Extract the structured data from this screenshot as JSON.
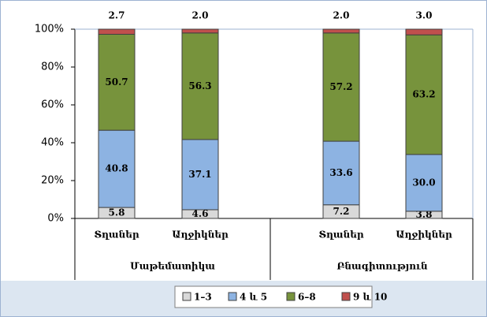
{
  "chart_data": {
    "type": "stacked_bar_percent",
    "categories": [
      "Տղաներ",
      "Աղջիկներ",
      "Տղաներ",
      "Աղջիկներ"
    ],
    "category_groups": [
      "Մաթեմատիկա",
      "Բնագիտություն"
    ],
    "series": [
      {
        "name": "1–3",
        "color": "#d9d9d9",
        "values": [
          5.8,
          4.6,
          7.2,
          3.8
        ],
        "value_labels": [
          "5.8",
          "4.6",
          "7.2",
          "3.8"
        ]
      },
      {
        "name": "4 և 5",
        "color": "#8db3e2",
        "values": [
          40.8,
          37.1,
          33.6,
          30.0
        ],
        "value_labels": [
          "40.8",
          "37.1",
          "33.6",
          "30.0"
        ]
      },
      {
        "name": "6–8",
        "color": "#77933c",
        "values": [
          50.7,
          56.3,
          57.2,
          63.2
        ],
        "value_labels": [
          "50.7",
          "56.3",
          "57.2",
          "63.2"
        ]
      },
      {
        "name": "9 և 10",
        "color": "#c0504d",
        "values": [
          2.7,
          2.0,
          2.0,
          3.0
        ],
        "value_labels": [
          "2.7",
          "2.0",
          "2.0",
          "3.0"
        ]
      }
    ],
    "ylim": [
      0,
      100
    ],
    "yticks": [
      {
        "value": 0,
        "label": "0%"
      },
      {
        "value": 20,
        "label": "20%"
      },
      {
        "value": 40,
        "label": "40%"
      },
      {
        "value": 60,
        "label": "60%"
      },
      {
        "value": 80,
        "label": "80%"
      },
      {
        "value": 100,
        "label": "100%"
      }
    ],
    "legend": "bottom"
  }
}
